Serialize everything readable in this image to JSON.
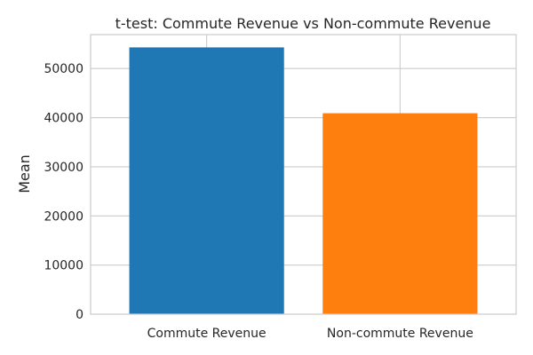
{
  "chart_data": {
    "type": "bar",
    "title": "t-test: Commute Revenue vs Non-commute Revenue",
    "xlabel": "",
    "ylabel": "Mean",
    "categories": [
      "Commute Revenue",
      "Non-commute Revenue"
    ],
    "values": [
      54300,
      40900
    ],
    "colors": [
      "#1f77b4",
      "#ff7f0e"
    ],
    "ylim": [
      0,
      56900
    ],
    "yticks": [
      0,
      10000,
      20000,
      30000,
      40000,
      50000
    ],
    "ytick_labels": [
      "0",
      "10000",
      "20000",
      "30000",
      "40000",
      "50000"
    ],
    "grid": true,
    "legend": "none"
  }
}
